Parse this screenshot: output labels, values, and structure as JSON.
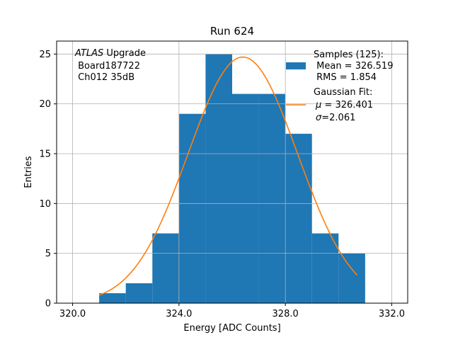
{
  "chart_data": {
    "type": "bar",
    "title": "Run 624",
    "xlabel": "Energy [ADC Counts]",
    "ylabel": "Entries",
    "xlim": [
      319.4,
      332.6
    ],
    "ylim": [
      0,
      26.3
    ],
    "xticks": [
      320.0,
      324.0,
      328.0,
      332.0
    ],
    "xtick_labels": [
      "320.0",
      "324.0",
      "328.0",
      "332.0"
    ],
    "yticks": [
      0,
      5,
      10,
      15,
      20,
      25
    ],
    "ytick_labels": [
      "0",
      "5",
      "10",
      "15",
      "20",
      "25"
    ],
    "grid": true,
    "legend_position": "top-right",
    "histogram": {
      "name": "Samples (125):",
      "bin_edges": [
        321,
        322,
        323,
        324,
        325,
        326,
        327,
        328,
        329,
        330,
        331
      ],
      "counts": [
        1,
        2,
        7,
        19,
        25,
        21,
        21,
        17,
        7,
        5
      ],
      "color": "#1f77b4"
    },
    "fit": {
      "name": "Gaussian Fit:",
      "mu": 326.401,
      "sigma": 2.061,
      "x_range": [
        321,
        330.7
      ],
      "peak": 24.7,
      "color": "#ff7f0e"
    },
    "annotation": {
      "line1_italic": "ATLAS",
      "line1_rest": " Upgrade",
      "line2": " Board187722",
      "line3": " Ch012 35dB"
    },
    "legend": {
      "samples_title": "Samples (125):",
      "samples_mean": " Mean = 326.519",
      "samples_rms": " RMS = 1.854",
      "fit_title": "Gaussian Fit:",
      "fit_mu_symbol": "μ",
      "fit_mu_value": " = 326.401",
      "fit_sigma_symbol": "σ",
      "fit_sigma_value": "=2.061"
    }
  }
}
